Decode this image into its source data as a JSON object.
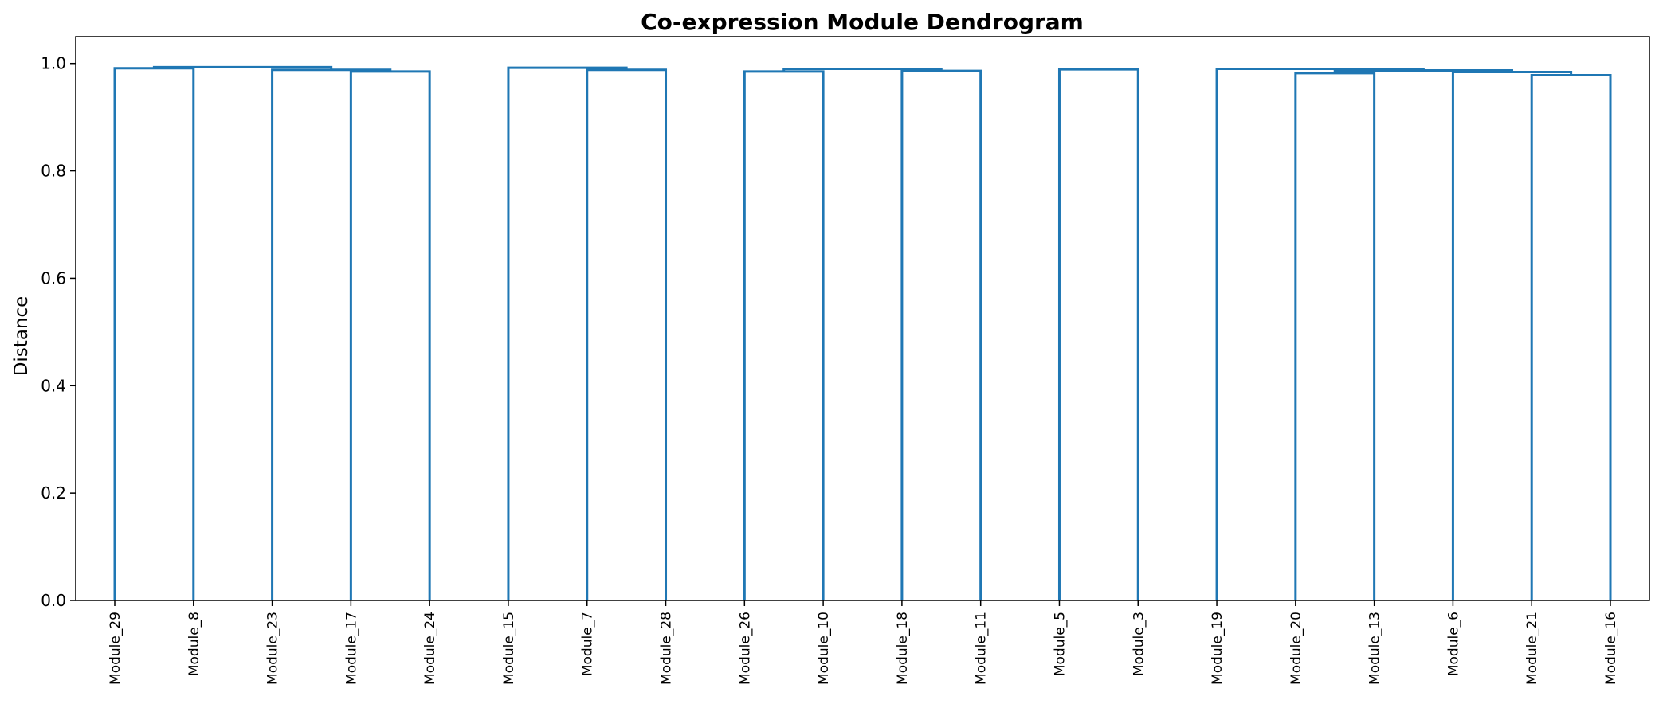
{
  "chart_data": {
    "type": "dendrogram",
    "title": "Co-expression Module Dendrogram",
    "xlabel": "",
    "ylabel": "Distance",
    "ylim": [
      0,
      1.05
    ],
    "yticks": [
      "0.0",
      "0.2",
      "0.4",
      "0.6",
      "0.8",
      "1.0"
    ],
    "grid": false,
    "link_color": "#1f77b4",
    "leaves": [
      "Module_29",
      "Module_8",
      "Module_23",
      "Module_17",
      "Module_24",
      "Module_15",
      "Module_7",
      "Module_28",
      "Module_26",
      "Module_10",
      "Module_18",
      "Module_11",
      "Module_5",
      "Module_3",
      "Module_19",
      "Module_20",
      "Module_13",
      "Module_6",
      "Module_21",
      "Module_16"
    ],
    "merges": [
      {
        "left": "Module_29",
        "right": "Module_8",
        "height": 0.991
      },
      {
        "left": "Module_17",
        "right": "Module_24",
        "height": 0.985
      },
      {
        "left": "Module_23",
        "right": "[Module_17, Module_24]",
        "height": 0.988
      },
      {
        "left": "[Module_29, Module_8]",
        "right": "[Module_23, Module_17, Module_24]",
        "height": 0.993
      },
      {
        "left": "Module_7",
        "right": "Module_28",
        "height": 0.988
      },
      {
        "left": "Module_15",
        "right": "[Module_7, Module_28]",
        "height": 0.992
      },
      {
        "left": "Module_26",
        "right": "Module_10",
        "height": 0.985
      },
      {
        "left": "Module_18",
        "right": "Module_11",
        "height": 0.986
      },
      {
        "left": "[Module_26, Module_10]",
        "right": "[Module_18, Module_11]",
        "height": 0.99
      },
      {
        "left": "Module_5",
        "right": "Module_3",
        "height": 0.989
      },
      {
        "left": "Module_20",
        "right": "Module_13",
        "height": 0.982
      },
      {
        "left": "Module_21",
        "right": "Module_16",
        "height": 0.978
      },
      {
        "left": "Module_6",
        "right": "[Module_21, Module_16]",
        "height": 0.984
      },
      {
        "left": "[Module_20, Module_13]",
        "right": "[Module_6, Module_21, Module_16]",
        "height": 0.987
      },
      {
        "left": "Module_19",
        "right": "[Module_20, Module_13, Module_6, Module_21, Module_16]",
        "height": 0.99
      },
      {
        "left": "[Module_5, Module_3]",
        "right": "[Module_19, ... Module_16]",
        "height": 0.992
      },
      {
        "left": "[Module_26, ... Module_11]",
        "right": "[Module_5, ... Module_16]",
        "height": 0.992
      },
      {
        "left": "[Module_15, Module_7, Module_28]",
        "right": "[Module_26, ... Module_16]",
        "height": 0.993
      },
      {
        "left": "[Module_29, ... Module_24]",
        "right": "[Module_15, ... Module_16]",
        "height": 0.994
      }
    ]
  }
}
